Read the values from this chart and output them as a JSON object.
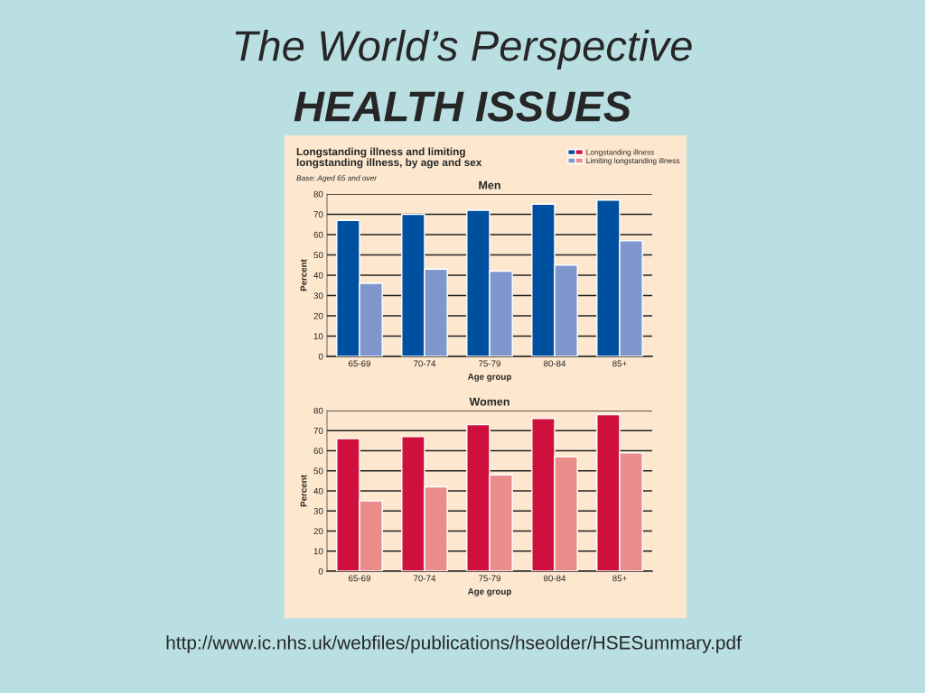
{
  "chart_data": [
    {
      "type": "bar",
      "title": "Men",
      "xlabel": "Age group",
      "ylabel": "Percent",
      "annotations": [
        "The World’s Perspective",
        "HEALTH ISSUES",
        "Longstanding illness and limiting\nlongstanding illness, by age and sex",
        "Base: Aged 65 and over",
        "http://www.ic.nhs.uk/webfiles/publications/hseolder/HSESummary.pdf"
      ],
      "categories": [
        "65-69",
        "70-74",
        "75-79",
        "80-84",
        "85+"
      ],
      "series": [
        {
          "name": "Longstanding illness",
          "color": "#0050a0",
          "values": [
            67,
            70,
            72,
            75,
            77
          ]
        },
        {
          "name": "Limiting longstanding illness",
          "color": "#7f97cc",
          "values": [
            36,
            43,
            42,
            45,
            57
          ]
        }
      ],
      "ylim": [
        0,
        80
      ],
      "yticks": [
        0,
        10,
        20,
        30,
        40,
        50,
        60,
        70,
        80
      ],
      "grid": "y",
      "legend": "top right"
    },
    {
      "type": "bar",
      "title": "Women",
      "xlabel": "Age group",
      "ylabel": "Percent",
      "categories": [
        "65-69",
        "70-74",
        "75-79",
        "80-84",
        "85+"
      ],
      "series": [
        {
          "color": "#d0103c",
          "values": [
            66,
            67,
            73,
            76,
            78
          ]
        },
        {
          "color": "#e98c8a",
          "values": [
            35,
            42,
            48,
            57,
            59
          ]
        }
      ],
      "ylim": [
        0,
        80
      ],
      "yticks": [
        0,
        10,
        20,
        30,
        40,
        50,
        60,
        70,
        80
      ],
      "grid": "y"
    }
  ]
}
